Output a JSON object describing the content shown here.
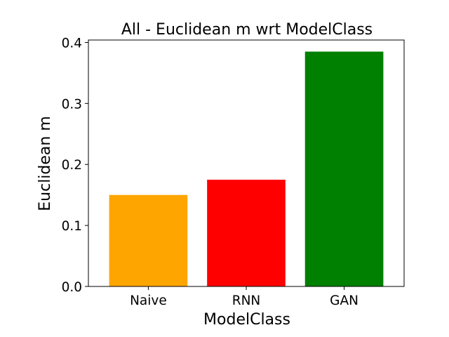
{
  "chart_data": {
    "type": "bar",
    "title": "All - Euclidean m wrt ModelClass",
    "xlabel": "ModelClass",
    "ylabel": "Euclidean m",
    "categories": [
      "Naive",
      "RNN",
      "GAN"
    ],
    "values": [
      0.15,
      0.175,
      0.385
    ],
    "colors": [
      "#ffa500",
      "#ff0000",
      "#008000"
    ],
    "ylim": [
      0,
      0.404
    ],
    "yticks": [
      0.0,
      0.1,
      0.2,
      0.3,
      0.4
    ],
    "ytick_labels": [
      "0.0",
      "0.1",
      "0.2",
      "0.3",
      "0.4"
    ],
    "grid": false,
    "legend": "none"
  }
}
